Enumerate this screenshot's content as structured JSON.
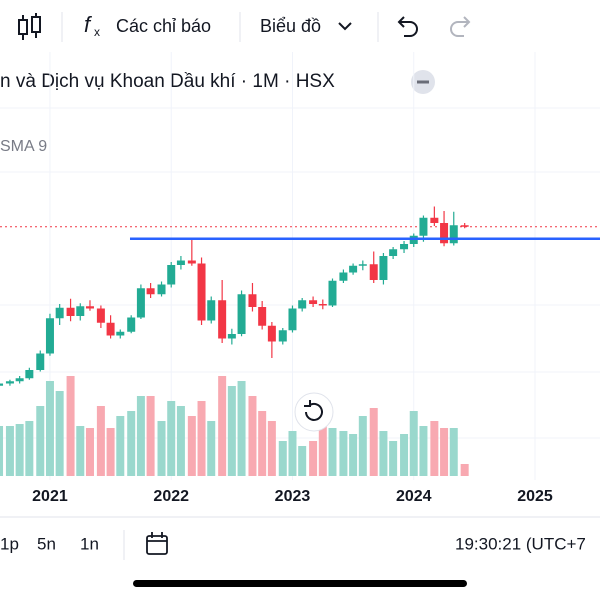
{
  "toolbar": {
    "indicators": "Các chỉ báo",
    "chart_type": "Biểu đồ"
  },
  "legend": {
    "title": "n và Dịch vụ Khoan Dầu khí · 1M · HSX",
    "indicator": "SMA 9"
  },
  "chart_data": {
    "type": "candlestick",
    "x": [
      2020.58,
      2020.67,
      2020.75,
      2020.83,
      2020.92,
      2021.0,
      2021.08,
      2021.17,
      2021.25,
      2021.33,
      2021.42,
      2021.5,
      2021.58,
      2021.67,
      2021.75,
      2021.83,
      2021.92,
      2022.0,
      2022.08,
      2022.17,
      2022.25,
      2022.33,
      2022.42,
      2022.5,
      2022.58,
      2022.67,
      2022.75,
      2022.83,
      2022.92,
      2023.0,
      2023.08,
      2023.17,
      2023.25,
      2023.33,
      2023.42,
      2023.5,
      2023.58,
      2023.67,
      2023.75,
      2023.83,
      2023.92,
      2024.0,
      2024.08,
      2024.17,
      2024.25,
      2024.33,
      2024.42
    ],
    "ohlc": [
      [
        9.9,
        10.4,
        9.6,
        10.2
      ],
      [
        10.2,
        10.7,
        9.9,
        10.5
      ],
      [
        10.5,
        11.2,
        10.2,
        10.9
      ],
      [
        10.9,
        12.3,
        10.7,
        12
      ],
      [
        12,
        14.6,
        11.8,
        14.2
      ],
      [
        14.2,
        19.5,
        13.9,
        18.9
      ],
      [
        18.9,
        20.8,
        18,
        20.3
      ],
      [
        20.3,
        21.5,
        18.5,
        19.2
      ],
      [
        19.2,
        20.9,
        18.6,
        20.5
      ],
      [
        20.5,
        21.3,
        19.9,
        20.2
      ],
      [
        20.2,
        20.6,
        17.6,
        18.3
      ],
      [
        18.3,
        19.3,
        16.2,
        16.6
      ],
      [
        16.6,
        17.4,
        16.2,
        17.1
      ],
      [
        17.1,
        19.3,
        16.9,
        19
      ],
      [
        19,
        23.4,
        18.8,
        22.9
      ],
      [
        22.9,
        23.6,
        21.6,
        22.1
      ],
      [
        22.1,
        23.8,
        21.8,
        23.4
      ],
      [
        23.4,
        26.4,
        23,
        26
      ],
      [
        26,
        27.2,
        25.4,
        26.6
      ],
      [
        26.6,
        29.6,
        25.9,
        26.2
      ],
      [
        26.2,
        27,
        18,
        18.6
      ],
      [
        18.6,
        21.8,
        18.2,
        21.3
      ],
      [
        21.3,
        24,
        15.6,
        16.2
      ],
      [
        16.2,
        17.5,
        15.4,
        16.8
      ],
      [
        16.8,
        22.6,
        16.5,
        22.1
      ],
      [
        22.1,
        23.6,
        19.8,
        20.4
      ],
      [
        20.4,
        21.2,
        17.4,
        17.9
      ],
      [
        17.9,
        18.4,
        13.6,
        15.8
      ],
      [
        15.8,
        17.6,
        15.4,
        17.3
      ],
      [
        17.3,
        20.6,
        17,
        20.2
      ],
      [
        20.2,
        21.6,
        19.8,
        21.3
      ],
      [
        21.3,
        21.8,
        20.4,
        20.8
      ],
      [
        20.8,
        21.4,
        20.1,
        20.6
      ],
      [
        20.6,
        24.2,
        20.4,
        23.9
      ],
      [
        23.9,
        25.4,
        23.6,
        25
      ],
      [
        25,
        26.2,
        24.7,
        25.9
      ],
      [
        25.9,
        26.6,
        25.3,
        26.1
      ],
      [
        26.1,
        27.8,
        23.6,
        24
      ],
      [
        24,
        27.6,
        23.4,
        27.2
      ],
      [
        27.2,
        28.4,
        26.8,
        28.1
      ],
      [
        28.1,
        29.2,
        27.6,
        28.8
      ],
      [
        28.8,
        30.2,
        28.4,
        29.9
      ],
      [
        29.9,
        32.6,
        29.1,
        32.3
      ],
      [
        32.3,
        33.8,
        31.2,
        31.6
      ],
      [
        31.6,
        33.2,
        28.5,
        28.9
      ],
      [
        28.9,
        33.1,
        28.6,
        31.3
      ],
      [
        31.3,
        31.6,
        30.9,
        31.1
      ]
    ],
    "volume": [
      50,
      50,
      52,
      55,
      70,
      95,
      85,
      100,
      50,
      48,
      70,
      48,
      60,
      65,
      80,
      80,
      55,
      75,
      70,
      60,
      75,
      55,
      100,
      90,
      95,
      80,
      65,
      55,
      35,
      45,
      30,
      35,
      50,
      48,
      45,
      42,
      60,
      68,
      45,
      35,
      42,
      65,
      50,
      55,
      48,
      48,
      12
    ],
    "volume_ylim": [
      0,
      100
    ],
    "ylim": [
      0,
      56
    ],
    "xlim": [
      2020.588,
      2025.536
    ],
    "xticks": [
      2021,
      2022,
      2023,
      2024,
      2025
    ],
    "up_color": "#22ab94",
    "down_color": "#f23645",
    "volume_up_color": "#9ad8cd",
    "volume_down_color": "#f8a9b1",
    "hline": {
      "value": 29.5,
      "x0": 2021.66,
      "color": "#2962ff"
    },
    "last_price": 31.1,
    "grid": true
  },
  "bottom_bar": {
    "intervals": [
      "1p",
      "5n",
      "1n"
    ],
    "clock": "19:30:21 (UTC+7"
  }
}
